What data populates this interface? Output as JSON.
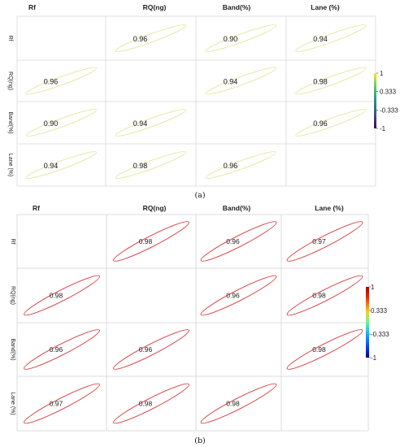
{
  "chart_data": [
    {
      "type": "heatmap",
      "panel_label": "(a)",
      "columns": [
        "Rf",
        "RQ(ng)",
        "Band(%)",
        "Lane (%)"
      ],
      "rows": [
        "Rf",
        "RQ(ng)",
        "Band(%)",
        "Lane (%)"
      ],
      "matrix": [
        [
          null,
          0.96,
          0.9,
          0.94
        ],
        [
          0.96,
          null,
          0.94,
          0.98
        ],
        [
          0.9,
          0.94,
          null,
          0.96
        ],
        [
          0.94,
          0.98,
          0.96,
          null
        ]
      ],
      "value_labels": [
        [
          null,
          "0.96",
          "0.90",
          "0.94"
        ],
        [
          "0.96",
          null,
          "0.94",
          "0.98"
        ],
        [
          "0.90",
          "0.94",
          null,
          "0.96"
        ],
        [
          "0.94",
          "0.98",
          "0.96",
          null
        ]
      ],
      "ellipse_color": "#e4e6a0",
      "colorbar": {
        "ticks": [
          "1",
          "0.333",
          "-0.333",
          "-1"
        ],
        "range": [
          -1,
          1
        ],
        "colormap": "viridis"
      }
    },
    {
      "type": "heatmap",
      "panel_label": "(b)",
      "columns": [
        "Rf",
        "RQ(ng)",
        "Band(%)",
        "Lane (%)"
      ],
      "rows": [
        "Rf",
        "RQ(ng)",
        "Band(%)",
        "Lane (%)"
      ],
      "matrix": [
        [
          null,
          0.98,
          0.96,
          0.97
        ],
        [
          0.98,
          null,
          0.96,
          0.98
        ],
        [
          0.96,
          0.96,
          null,
          0.98
        ],
        [
          0.97,
          0.98,
          0.98,
          null
        ]
      ],
      "value_labels": [
        [
          null,
          "0.98",
          "0.96",
          "0.97"
        ],
        [
          "0.98",
          null,
          "0.96",
          "0.98"
        ],
        [
          "0.96",
          "0.96",
          null,
          "0.98"
        ],
        [
          "0.97",
          "0.98",
          "0.98",
          null
        ]
      ],
      "ellipse_color": "#d9373a",
      "colorbar": {
        "ticks": [
          "1",
          "0.333",
          "-0.333",
          "-1"
        ],
        "range": [
          -1,
          1
        ],
        "colormap": "jet"
      }
    }
  ]
}
